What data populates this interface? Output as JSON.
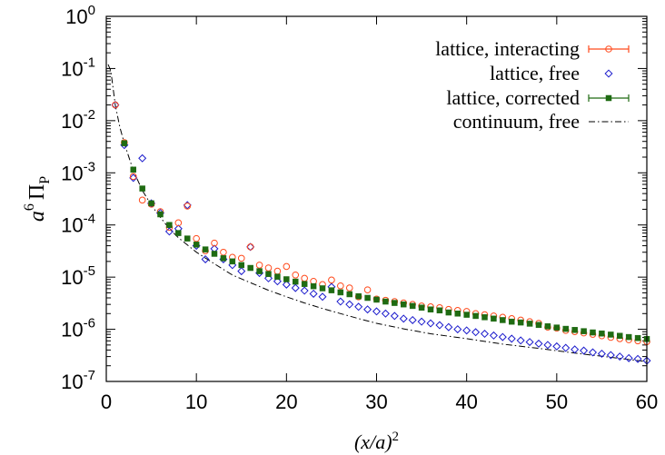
{
  "chart_data": {
    "type": "scatter",
    "xlabel": {
      "main": "(x/a)",
      "sup": "2"
    },
    "ylabel": {
      "prefix": "a",
      "sup": "6",
      "main": "Π",
      "sub": "P"
    },
    "xlim": [
      0,
      60
    ],
    "ylim": [
      1e-07,
      1
    ],
    "yscale": "log",
    "xticks": [
      0,
      10,
      20,
      30,
      40,
      50,
      60
    ],
    "yticks": [
      {
        "value": 1,
        "base": "10",
        "exp": "0"
      },
      {
        "value": 0.1,
        "base": "10",
        "exp": "-1"
      },
      {
        "value": 0.01,
        "base": "10",
        "exp": "-2"
      },
      {
        "value": 0.001,
        "base": "10",
        "exp": "-3"
      },
      {
        "value": 0.0001,
        "base": "10",
        "exp": "-4"
      },
      {
        "value": 1e-05,
        "base": "10",
        "exp": "-5"
      },
      {
        "value": 1e-06,
        "base": "10",
        "exp": "-6"
      },
      {
        "value": 1e-07,
        "base": "10",
        "exp": "-7"
      }
    ],
    "grid": false,
    "legend_position": "top-right",
    "series": [
      {
        "name": "lattice, interacting",
        "marker": "circle-open",
        "color": "#ff4a1c",
        "legend_style": "errorbar",
        "points": [
          [
            1,
            0.02
          ],
          [
            2,
            0.0038
          ],
          [
            3,
            0.00085
          ],
          [
            4,
            0.0003
          ],
          [
            5,
            0.00025
          ],
          [
            6,
            0.00018
          ],
          [
            7,
            9e-05
          ],
          [
            8,
            0.00011
          ],
          [
            9,
            0.00023
          ],
          [
            10,
            5.5e-05
          ],
          [
            11,
            3.2e-05
          ],
          [
            12,
            4.5e-05
          ],
          [
            13,
            3e-05
          ],
          [
            14,
            2.4e-05
          ],
          [
            15,
            2.3e-05
          ],
          [
            16,
            3.8e-05
          ],
          [
            17,
            1.7e-05
          ],
          [
            18,
            1.5e-05
          ],
          [
            19,
            1.3e-05
          ],
          [
            20,
            1.6e-05
          ],
          [
            21,
            1.1e-05
          ],
          [
            22,
            9.5e-06
          ],
          [
            23,
            8.3e-06
          ],
          [
            24,
            7.2e-06
          ],
          [
            25,
            8.8e-06
          ],
          [
            26,
            6.8e-06
          ],
          [
            27,
            6.2e-06
          ],
          [
            28,
            4.2e-06
          ],
          [
            29,
            5.7e-06
          ],
          [
            30,
            3.8e-06
          ],
          [
            31,
            3.6e-06
          ],
          [
            32,
            3.4e-06
          ],
          [
            33,
            3.2e-06
          ],
          [
            34,
            3e-06
          ],
          [
            35,
            2.8e-06
          ],
          [
            36,
            2.7e-06
          ],
          [
            37,
            2.6e-06
          ],
          [
            38,
            2.4e-06
          ],
          [
            39,
            2.3e-06
          ],
          [
            40,
            2.2e-06
          ],
          [
            41,
            2e-06
          ],
          [
            42,
            1.9e-06
          ],
          [
            43,
            1.8e-06
          ],
          [
            44,
            1.7e-06
          ],
          [
            45,
            1.6e-06
          ],
          [
            46,
            1.5e-06
          ],
          [
            47,
            1.4e-06
          ],
          [
            48,
            1.3e-06
          ],
          [
            49,
            1.1e-06
          ],
          [
            50,
            1.05e-06
          ],
          [
            51,
            9.5e-07
          ],
          [
            52,
            9e-07
          ],
          [
            53,
            8.5e-07
          ],
          [
            54,
            8e-07
          ],
          [
            55,
            7.5e-07
          ],
          [
            56,
            7e-07
          ],
          [
            57,
            6.6e-07
          ],
          [
            58,
            6.3e-07
          ],
          [
            59,
            6e-07
          ],
          [
            60,
            5.8e-07
          ]
        ]
      },
      {
        "name": "lattice, free",
        "marker": "diamond-open",
        "color": "#1a1acc",
        "legend_style": "point",
        "points": [
          [
            1,
            0.02
          ],
          [
            2,
            0.0034
          ],
          [
            3,
            0.0008
          ],
          [
            4,
            0.0019
          ],
          [
            5,
            0.00026
          ],
          [
            6,
            0.00017
          ],
          [
            7,
            7.5e-05
          ],
          [
            8,
            8.5e-05
          ],
          [
            9,
            0.00024
          ],
          [
            10,
            4e-05
          ],
          [
            11,
            2.2e-05
          ],
          [
            12,
            3.5e-05
          ],
          [
            13,
            2.2e-05
          ],
          [
            14,
            1.7e-05
          ],
          [
            15,
            1.3e-05
          ],
          [
            16,
            3.8e-05
          ],
          [
            17,
            1.2e-05
          ],
          [
            18,
            9.5e-06
          ],
          [
            19,
            8.3e-06
          ],
          [
            20,
            7.2e-06
          ],
          [
            21,
            6.2e-06
          ],
          [
            22,
            5.5e-06
          ],
          [
            23,
            4.8e-06
          ],
          [
            24,
            4.2e-06
          ],
          [
            25,
            6.5e-06
          ],
          [
            26,
            3.4e-06
          ],
          [
            27,
            3e-06
          ],
          [
            28,
            2.7e-06
          ],
          [
            29,
            2.4e-06
          ],
          [
            30,
            2.2e-06
          ],
          [
            31,
            2e-06
          ],
          [
            32,
            1.8e-06
          ],
          [
            33,
            1.6e-06
          ],
          [
            34,
            1.5e-06
          ],
          [
            35,
            1.4e-06
          ],
          [
            36,
            1.3e-06
          ],
          [
            37,
            1.2e-06
          ],
          [
            38,
            1.1e-06
          ],
          [
            39,
            1e-06
          ],
          [
            40,
            9.5e-07
          ],
          [
            41,
            8.8e-07
          ],
          [
            42,
            8.2e-07
          ],
          [
            43,
            7.6e-07
          ],
          [
            44,
            7.1e-07
          ],
          [
            45,
            6.6e-07
          ],
          [
            46,
            6.1e-07
          ],
          [
            47,
            5.7e-07
          ],
          [
            48,
            5.3e-07
          ],
          [
            49,
            5e-07
          ],
          [
            50,
            4.7e-07
          ],
          [
            51,
            4.4e-07
          ],
          [
            52,
            4.1e-07
          ],
          [
            53,
            3.9e-07
          ],
          [
            54,
            3.6e-07
          ],
          [
            55,
            3.4e-07
          ],
          [
            56,
            3.2e-07
          ],
          [
            57,
            3e-07
          ],
          [
            58,
            2.8e-07
          ],
          [
            59,
            2.7e-07
          ],
          [
            60,
            2.5e-07
          ]
        ]
      },
      {
        "name": "lattice, corrected",
        "marker": "square-filled",
        "color": "#1f6b12",
        "legend_style": "errorbar",
        "points": [
          [
            2,
            0.0037
          ],
          [
            3,
            0.00115
          ],
          [
            4,
            0.0005
          ],
          [
            5,
            0.00026
          ],
          [
            6,
            0.00016
          ],
          [
            7,
            0.0001
          ],
          [
            8,
            7e-05
          ],
          [
            9,
            5.5e-05
          ],
          [
            10,
            4.2e-05
          ],
          [
            11,
            3.4e-05
          ],
          [
            12,
            2.8e-05
          ],
          [
            13,
            2.3e-05
          ],
          [
            14,
            2e-05
          ],
          [
            15,
            1.7e-05
          ],
          [
            16,
            1.5e-05
          ],
          [
            17,
            1.3e-05
          ],
          [
            18,
            1.15e-05
          ],
          [
            19,
            1.02e-05
          ],
          [
            20,
            9.1e-06
          ],
          [
            21,
            8.2e-06
          ],
          [
            22,
            7.4e-06
          ],
          [
            23,
            6.7e-06
          ],
          [
            24,
            6.1e-06
          ],
          [
            25,
            5.6e-06
          ],
          [
            26,
            5.1e-06
          ],
          [
            27,
            4.7e-06
          ],
          [
            28,
            4.3e-06
          ],
          [
            29,
            4e-06
          ],
          [
            30,
            3.7e-06
          ],
          [
            31,
            3.4e-06
          ],
          [
            32,
            3.2e-06
          ],
          [
            33,
            3e-06
          ],
          [
            34,
            2.8e-06
          ],
          [
            35,
            2.6e-06
          ],
          [
            36,
            2.4e-06
          ],
          [
            37,
            2.3e-06
          ],
          [
            38,
            2.1e-06
          ],
          [
            39,
            2e-06
          ],
          [
            40,
            1.9e-06
          ],
          [
            41,
            1.8e-06
          ],
          [
            42,
            1.7e-06
          ],
          [
            43,
            1.6e-06
          ],
          [
            44,
            1.5e-06
          ],
          [
            45,
            1.4e-06
          ],
          [
            46,
            1.35e-06
          ],
          [
            47,
            1.28e-06
          ],
          [
            48,
            1.21e-06
          ],
          [
            49,
            1.14e-06
          ],
          [
            50,
            1.08e-06
          ],
          [
            51,
            1.02e-06
          ],
          [
            52,
            9.7e-07
          ],
          [
            53,
            9.2e-07
          ],
          [
            54,
            8.7e-07
          ],
          [
            55,
            8.3e-07
          ],
          [
            56,
            7.9e-07
          ],
          [
            57,
            7.5e-07
          ],
          [
            58,
            7.1e-07
          ],
          [
            59,
            6.8e-07
          ],
          [
            60,
            6.5e-07
          ]
        ]
      },
      {
        "name": "continuum, free",
        "marker": "none",
        "line": "dash-dot",
        "color": "#000000",
        "legend_style": "line",
        "points": [
          [
            0.2,
            0.12
          ],
          [
            0.5,
            0.09
          ],
          [
            1,
            0.02
          ],
          [
            1.5,
            0.0075
          ],
          [
            2,
            0.0037
          ],
          [
            3,
            0.0011
          ],
          [
            4,
            0.00046
          ],
          [
            5,
            0.00024
          ],
          [
            6,
            0.00014
          ],
          [
            7,
            8.5e-05
          ],
          [
            8,
            5.7e-05
          ],
          [
            10,
            3e-05
          ],
          [
            12,
            1.8e-05
          ],
          [
            14,
            1.1e-05
          ],
          [
            16,
            7.8e-06
          ],
          [
            18,
            5.6e-06
          ],
          [
            20,
            4.2e-06
          ],
          [
            22,
            3.2e-06
          ],
          [
            24,
            2.5e-06
          ],
          [
            26,
            2e-06
          ],
          [
            28,
            1.6e-06
          ],
          [
            30,
            1.3e-06
          ],
          [
            33,
            1.02e-06
          ],
          [
            36,
            8.2e-07
          ],
          [
            40,
            6.6e-07
          ],
          [
            44,
            5.2e-07
          ],
          [
            48,
            4.3e-07
          ],
          [
            52,
            3.5e-07
          ],
          [
            56,
            2.9e-07
          ],
          [
            60,
            2.4e-07
          ]
        ]
      }
    ]
  }
}
